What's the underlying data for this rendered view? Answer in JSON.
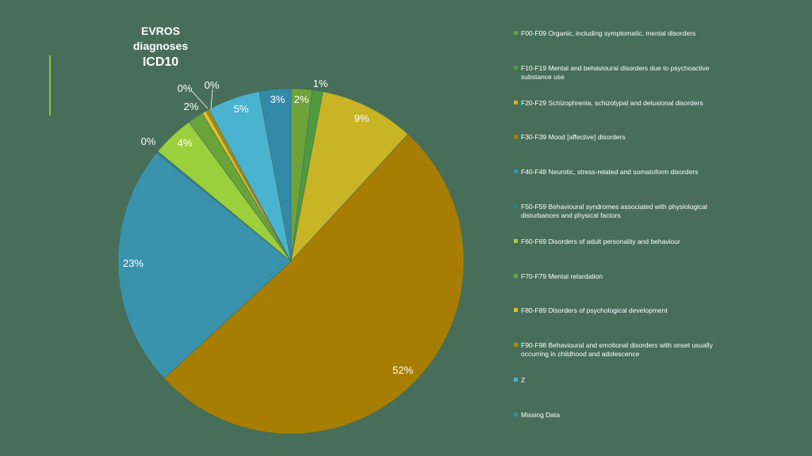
{
  "title": {
    "line1": "EVROS",
    "line2": "diagnoses",
    "line3": "ICD10"
  },
  "chart_data": {
    "type": "pie",
    "title": "EVROS diagnoses ICD10",
    "slices": [
      {
        "name": "F00-F09 Organic, including symptomatic, mental disorders",
        "value": 2,
        "label": "2%",
        "color": "#6ea33a"
      },
      {
        "name": "F10-F19 Mental and behavioural disorders due to psychoactive substance use",
        "value": 1,
        "label": "1%",
        "color": "#4e9a3e"
      },
      {
        "name": "F20-F29 Schizophrenia, schizotypal and delusional disorders",
        "value": 9,
        "label": "9%",
        "color": "#c8b424"
      },
      {
        "name": "F30-F39 Mood [affective] disorders",
        "value": 52,
        "label": "52%",
        "color": "#a87e02"
      },
      {
        "name": "F40-F48 Neurotic, stress-related and somatoform disorders",
        "value": 23,
        "label": "23%",
        "color": "#3a93ad"
      },
      {
        "name": "F50-F59 Behavioural syndromes associated with physiological disturbances and physical factors",
        "value": 0.2,
        "label": "0%",
        "color": "#2f7f99"
      },
      {
        "name": "F60-F69 Disorders of adult personality and behaviour",
        "value": 4,
        "label": "4%",
        "color": "#9bcf3c"
      },
      {
        "name": "F70-F79 Mental retardation",
        "value": 1.5,
        "label": "2%",
        "color": "#6aa33a"
      },
      {
        "name": "F80-F89 Disorders of psychological development",
        "value": 0.4,
        "label": "0%",
        "color": "#e0c020"
      },
      {
        "name": "F90-F98 Behavioural and emotional disorders with onset usually occurring in childhood and adolescence",
        "value": 0.3,
        "label": "0%",
        "color": "#b08a10"
      },
      {
        "name": "Z",
        "value": 5,
        "label": "5%",
        "color": "#4ab4d0"
      },
      {
        "name": "Missing Data",
        "value": 3,
        "label": "3%",
        "color": "#3389a8"
      }
    ]
  },
  "legend": [
    {
      "line1": "F00-F09 Organic, including symptomatic, mental disorders",
      "line2": "",
      "color": "#6ea33a"
    },
    {
      "line1": "F10-F19 Mental and behavioural disorders due to psychoactive",
      "line2": "substance use",
      "color": "#4e9a3e"
    },
    {
      "line1": "F20-F29 Schizophrenia, schizotypal and delusional disorders",
      "line2": "",
      "color": "#c8b424"
    },
    {
      "line1": "F30-F39 Mood [affective] disorders",
      "line2": "",
      "color": "#a87e02"
    },
    {
      "line1": "F40-F48 Neurotic, stress-related and somatoform disorders",
      "line2": "",
      "color": "#3a93ad"
    },
    {
      "line1": "F50-F59 Behavioural syndromes associated with physiological",
      "line2": "disturbances and physical factors",
      "color": "#2f7f99"
    },
    {
      "line1": "F60-F69 Disorders of adult personality and behaviour",
      "line2": "",
      "color": "#9bcf3c"
    },
    {
      "line1": "F70-F79 Mental retardation",
      "line2": "",
      "color": "#6aa33a"
    },
    {
      "line1": "F80-F89 Disorders of psychological development",
      "line2": "",
      "color": "#e0c020"
    },
    {
      "line1": "F90-F98 Behavioural and emotional disorders with onset usually",
      "line2": "occurring in childhood and adolescence",
      "color": "#b08a10"
    },
    {
      "line1": "Z",
      "line2": "",
      "color": "#4ab4d0"
    },
    {
      "line1": "Missing Data",
      "line2": "",
      "color": "#3389a8"
    }
  ]
}
